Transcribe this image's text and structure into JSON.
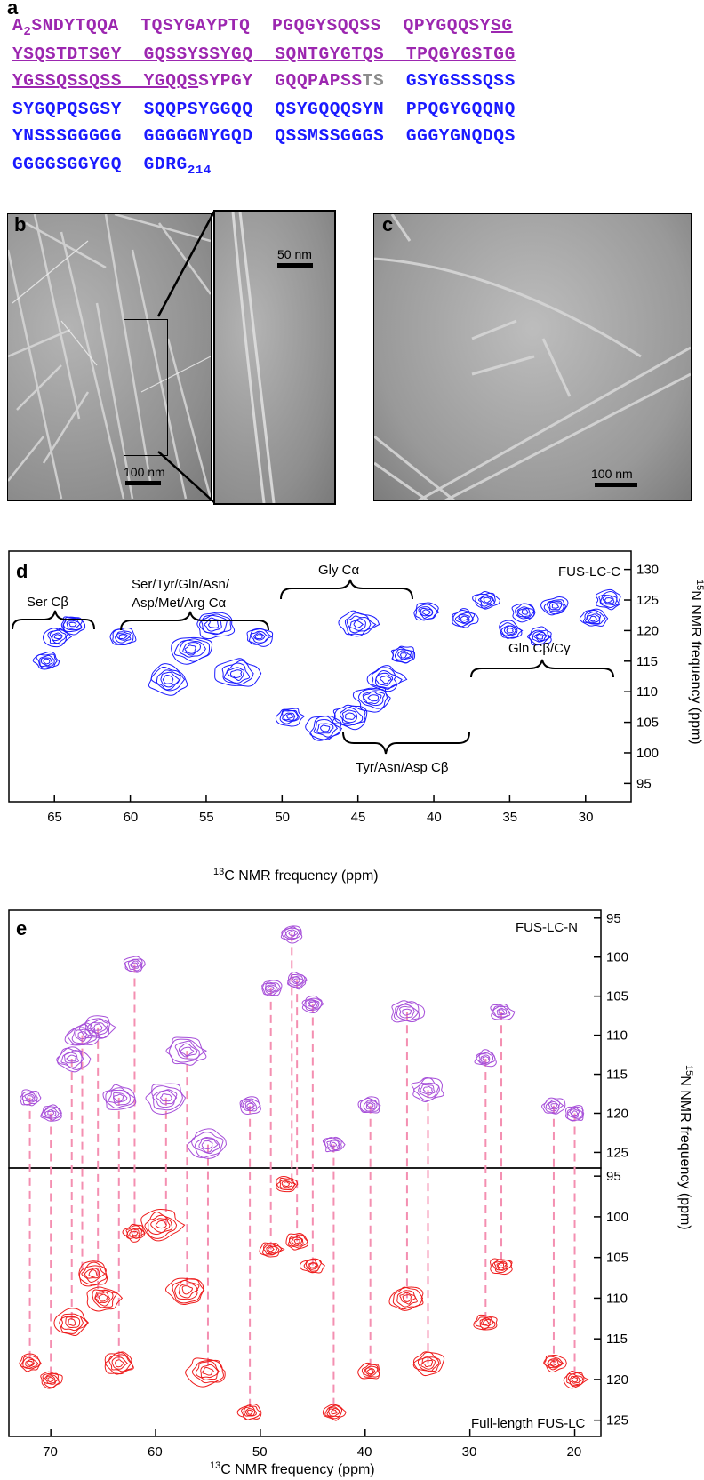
{
  "panel_a": {
    "label": "a",
    "lines": [
      [
        {
          "t": "A",
          "c": "purple"
        },
        {
          "t": "2",
          "c": "purple",
          "sub": true
        },
        {
          "t": "SNDYTQQA  TQSYGAYPTQ  PGQGYSQQSS  QPYGQQSY",
          "c": "purple"
        },
        {
          "t": "SG",
          "c": "purple",
          "ul": true
        }
      ],
      [
        {
          "t": "YSQSTDTSGY  GQSSYSSYGQ  SQNTGYGTQS  TPQGYGSTGG",
          "c": "purple",
          "ul": true
        }
      ],
      [
        {
          "t": "YGSSQSSQSS  YGQQS",
          "c": "purple",
          "ul": true
        },
        {
          "t": "SYPGY  GQQPAPSS",
          "c": "purple"
        },
        {
          "t": "TS",
          "c": "gray"
        },
        {
          "t": "  GSYGSSSQSS",
          "c": "blue"
        }
      ],
      [
        {
          "t": "SYGQPQSGSY  SQQPSYGGQQ  QSYGQQQSYN  PPQGYGQQNQ",
          "c": "blue"
        }
      ],
      [
        {
          "t": "YNSSSGGGGG  GGGGGNYGQD  QSSMSSGGGS  GGGYGNQDQS",
          "c": "blue"
        }
      ],
      [
        {
          "t": "GGGGSGGYGQ  GDRG",
          "c": "blue"
        },
        {
          "t": "214",
          "c": "blue",
          "sub": true
        }
      ]
    ]
  },
  "panel_b": {
    "label": "b",
    "scale_main": "100 nm",
    "scale_inset": "50 nm"
  },
  "panel_c": {
    "label": "c",
    "scale": "100 nm"
  },
  "panel_d": {
    "label": "d",
    "sample": "FUS-LC-C",
    "xlabel_sup": "13",
    "xlabel": "C NMR frequency (ppm)",
    "ylabel_sup": "15",
    "ylabel": "N NMR frequency (ppm)",
    "xticks": [
      "65",
      "60",
      "55",
      "50",
      "45",
      "40",
      "35",
      "30"
    ],
    "yticks": [
      "95",
      "100",
      "105",
      "110",
      "115",
      "120",
      "125",
      "130"
    ],
    "annotations": {
      "ser_cb": "Ser Cβ",
      "multi_ca_1": "Ser/Tyr/Gln/Asn/",
      "multi_ca_2": "Asp/Met/Arg Cα",
      "gly_ca": "Gly Cα",
      "gln": "Gln Cβ/Cγ",
      "tyr": "Tyr/Asn/Asp Cβ"
    }
  },
  "panel_e": {
    "label": "e",
    "top_sample": "FUS-LC-N",
    "bottom_sample": "Full-length FUS-LC",
    "xlabel_sup": "13",
    "xlabel": "C NMR frequency (ppm)",
    "ylabel_sup": "15",
    "ylabel": "N NMR frequency (ppm)",
    "xticks": [
      "70",
      "60",
      "50",
      "40",
      "30",
      "20"
    ],
    "yticks_top": [
      "95",
      "100",
      "105",
      "110",
      "115",
      "120",
      "125"
    ],
    "yticks_bottom": [
      "95",
      "100",
      "105",
      "110",
      "115",
      "120",
      "125"
    ]
  },
  "chart_data": [
    {
      "type": "scatter",
      "title": "",
      "xlabel": "13C NMR frequency (ppm)",
      "ylabel": "15N NMR frequency (ppm)",
      "xlim": [
        68,
        27
      ],
      "ylim": [
        133,
        92
      ],
      "series": [
        {
          "name": "FUS-LC-C",
          "color": "#1a1aff",
          "x": [
            65.5,
            64.8,
            63.8,
            57.5,
            56,
            54.5,
            53,
            51.5,
            47.2,
            45.5,
            44,
            43.2,
            42,
            45,
            40.5,
            38,
            36.5,
            35,
            34,
            33,
            32,
            29.5,
            28.5,
            49.5,
            60.5
          ],
          "y": [
            115,
            119,
            121,
            112,
            117,
            121,
            113,
            119,
            104,
            106,
            109,
            112,
            116,
            121,
            123,
            122,
            125,
            120,
            123,
            119,
            124,
            122,
            125,
            106,
            119
          ]
        }
      ]
    },
    {
      "type": "scatter",
      "title": "",
      "xlabel": "13C NMR frequency (ppm)",
      "ylabel": "15N NMR frequency (ppm)",
      "xlim": [
        74,
        17.5
      ],
      "ylim": [
        127,
        94
      ],
      "series": [
        {
          "name": "FUS-LC-N",
          "color": "#a64ed9",
          "x": [
            72,
            70,
            68,
            67,
            65.5,
            63.5,
            62,
            59,
            57,
            55,
            51,
            49,
            47,
            46.5,
            45,
            43,
            39.5,
            36,
            34,
            28.5,
            27,
            22,
            20
          ],
          "y": [
            118,
            120,
            113,
            110,
            109,
            118,
            101,
            118,
            112,
            124,
            119,
            104,
            97,
            103,
            106,
            124,
            119,
            107,
            117,
            113,
            107,
            119,
            120
          ]
        },
        {
          "name": "Full-length FUS-LC",
          "color": "#ee1c1c",
          "x": [
            72,
            70,
            68,
            66,
            65,
            63.5,
            62,
            59.5,
            57,
            55,
            51,
            49,
            47.5,
            46.5,
            45,
            43,
            39.5,
            36,
            34,
            28.5,
            27,
            22,
            20
          ],
          "y": [
            118,
            120,
            113,
            107,
            110,
            118,
            102,
            101,
            109,
            119,
            124,
            104,
            96,
            103,
            106,
            124,
            119,
            110,
            118,
            113,
            106,
            118,
            120
          ]
        }
      ]
    }
  ]
}
